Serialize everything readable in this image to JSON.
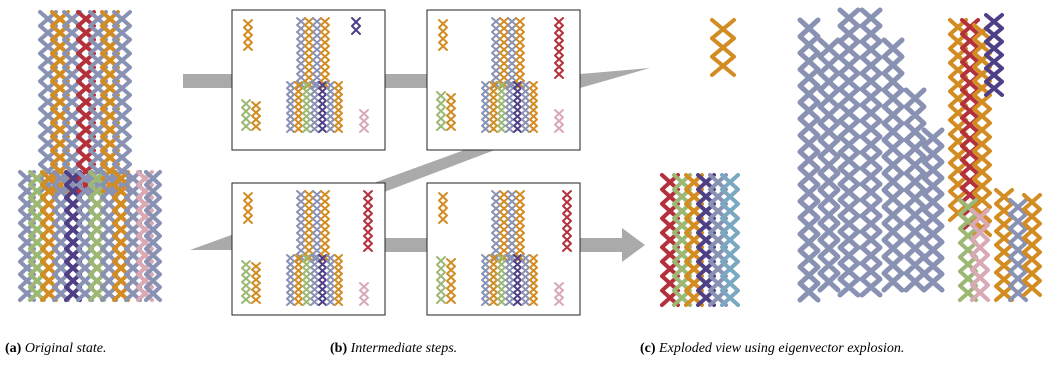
{
  "captions": [
    {
      "label": "(a)",
      "text": "Original state."
    },
    {
      "label": "(b)",
      "text": "Intermediate steps."
    },
    {
      "label": "(c)",
      "text": "Exploded view using eigenvector explosion."
    }
  ]
}
